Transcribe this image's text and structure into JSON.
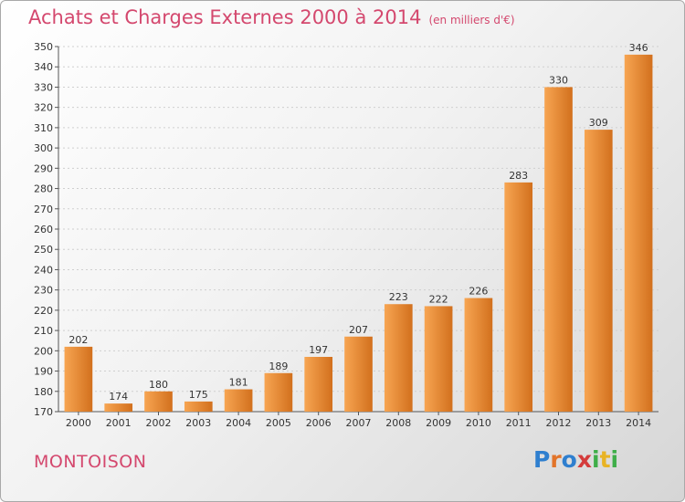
{
  "title": "Achats et Charges Externes 2000 à 2014",
  "subtitle": "(en milliers d'€)",
  "commune": "MONTOISON",
  "logo": {
    "text": "Proxiti"
  },
  "colors": {
    "title": "#d4486e",
    "bar_light": "#f7a552",
    "bar_dark": "#d2701d"
  },
  "chart_data": {
    "type": "bar",
    "title": "Achats et Charges Externes 2000 à 2014",
    "subtitle": "(en milliers d'€)",
    "xlabel": "",
    "ylabel": "",
    "categories": [
      "2000",
      "2001",
      "2002",
      "2003",
      "2004",
      "2005",
      "2006",
      "2007",
      "2008",
      "2009",
      "2010",
      "2011",
      "2012",
      "2013",
      "2014"
    ],
    "values": [
      202,
      174,
      180,
      175,
      181,
      189,
      197,
      207,
      223,
      222,
      226,
      283,
      330,
      309,
      346
    ],
    "data_labels": [
      "202",
      "174",
      "180",
      "175",
      "181",
      "189",
      "197",
      "207",
      "223",
      "222",
      "226",
      "283",
      "330",
      "309",
      "346"
    ],
    "ylim": [
      170,
      350
    ],
    "yticks": [
      170,
      180,
      190,
      200,
      210,
      220,
      230,
      240,
      250,
      260,
      270,
      280,
      290,
      300,
      310,
      320,
      330,
      340,
      350
    ],
    "grid": true
  }
}
